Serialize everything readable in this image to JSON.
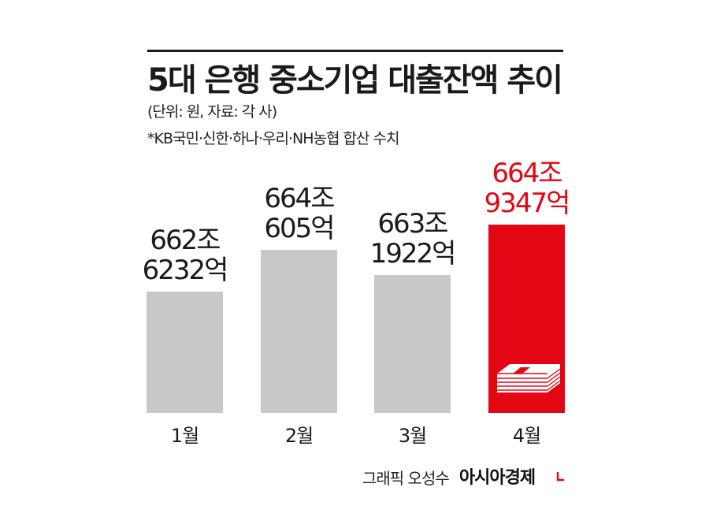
{
  "header": {
    "title": "5대 은행 중소기업 대출잔액 추이",
    "subtitle_unit": "(단위: 원, 자료: 각 사)",
    "note": "*KB국민·신한·하나·우리·NH농협 합산 수치"
  },
  "credit": {
    "author": "그래픽 오성수",
    "brand": "아시아경제"
  },
  "colors": {
    "bar_default": "#c8c8c8",
    "bar_highlight": "#e30613",
    "text_default": "#1a1a1a",
    "text_highlight": "#e30613"
  },
  "chart_data": {
    "type": "bar",
    "title": "5대 은행 중소기업 대출잔액 추이",
    "xlabel": "",
    "ylabel": "",
    "unit": "원",
    "categories": [
      "1월",
      "2월",
      "3월",
      "4월"
    ],
    "values": [
      662.6232,
      664.0605,
      663.1922,
      664.9347
    ],
    "value_labels": [
      [
        "662조",
        "6232억"
      ],
      [
        "664조",
        "605억"
      ],
      [
        "663조",
        "1922억"
      ],
      [
        "664조",
        "9347억"
      ]
    ],
    "highlight_index": 3,
    "grid": false,
    "legend": "none",
    "highlight_icon": "money-stack-icon"
  }
}
